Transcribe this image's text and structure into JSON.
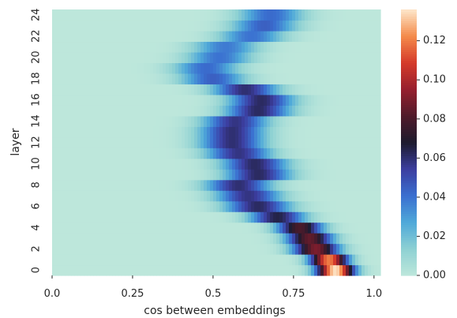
{
  "chart_data": {
    "type": "heatmap",
    "xlabel": "cos between embeddings",
    "ylabel": "layer",
    "x_ticks": [
      "0.0",
      "0.25",
      "0.5",
      "0.75",
      "1.0"
    ],
    "x_tick_values": [
      0,
      0.25,
      0.5,
      0.75,
      1.0
    ],
    "xlim": [
      0,
      1.02
    ],
    "y_ticks": [
      "0",
      "2",
      "4",
      "6",
      "8",
      "10",
      "12",
      "14",
      "16",
      "18",
      "20",
      "22",
      "24"
    ],
    "y_tick_values": [
      0,
      2,
      4,
      6,
      8,
      10,
      12,
      14,
      16,
      18,
      20,
      22,
      24
    ],
    "ylim": [
      0,
      24
    ],
    "colorbar": {
      "ticks": [
        "0.00",
        "0.02",
        "0.04",
        "0.06",
        "0.08",
        "0.10",
        "0.12"
      ],
      "tick_values": [
        0,
        0.02,
        0.04,
        0.06,
        0.08,
        0.1,
        0.12
      ],
      "range": [
        0,
        0.136
      ],
      "colormap": "icefire"
    },
    "colormap_stops": [
      [
        0.0,
        "#bde7db"
      ],
      [
        0.1,
        "#8ed1d3"
      ],
      [
        0.2,
        "#4fa9d9"
      ],
      [
        0.3,
        "#3a6fd0"
      ],
      [
        0.4,
        "#3c3ea0"
      ],
      [
        0.5,
        "#1d1b2e"
      ],
      [
        0.6,
        "#4f1b2b"
      ],
      [
        0.7,
        "#961f2e"
      ],
      [
        0.8,
        "#d53a2a"
      ],
      [
        0.9,
        "#f48a4a"
      ],
      [
        1.0,
        "#fde6c9"
      ]
    ],
    "layers": [
      {
        "layer": 0,
        "peak_x": 0.88,
        "width": 0.04,
        "max": 0.135
      },
      {
        "layer": 1,
        "peak_x": 0.86,
        "width": 0.04,
        "max": 0.12
      },
      {
        "layer": 2,
        "peak_x": 0.82,
        "width": 0.05,
        "max": 0.09
      },
      {
        "layer": 3,
        "peak_x": 0.8,
        "width": 0.05,
        "max": 0.085
      },
      {
        "layer": 4,
        "peak_x": 0.77,
        "width": 0.05,
        "max": 0.08
      },
      {
        "layer": 5,
        "peak_x": 0.7,
        "width": 0.06,
        "max": 0.065
      },
      {
        "layer": 6,
        "peak_x": 0.64,
        "width": 0.07,
        "max": 0.062
      },
      {
        "layer": 7,
        "peak_x": 0.61,
        "width": 0.07,
        "max": 0.058
      },
      {
        "layer": 8,
        "peak_x": 0.58,
        "width": 0.07,
        "max": 0.06
      },
      {
        "layer": 9,
        "peak_x": 0.64,
        "width": 0.07,
        "max": 0.062
      },
      {
        "layer": 10,
        "peak_x": 0.63,
        "width": 0.07,
        "max": 0.062
      },
      {
        "layer": 11,
        "peak_x": 0.58,
        "width": 0.07,
        "max": 0.058
      },
      {
        "layer": 12,
        "peak_x": 0.56,
        "width": 0.07,
        "max": 0.06
      },
      {
        "layer": 13,
        "peak_x": 0.56,
        "width": 0.07,
        "max": 0.06
      },
      {
        "layer": 14,
        "peak_x": 0.57,
        "width": 0.07,
        "max": 0.058
      },
      {
        "layer": 15,
        "peak_x": 0.64,
        "width": 0.07,
        "max": 0.062
      },
      {
        "layer": 16,
        "peak_x": 0.65,
        "width": 0.07,
        "max": 0.062
      },
      {
        "layer": 17,
        "peak_x": 0.6,
        "width": 0.07,
        "max": 0.06
      },
      {
        "layer": 18,
        "peak_x": 0.5,
        "width": 0.07,
        "max": 0.045
      },
      {
        "layer": 19,
        "peak_x": 0.48,
        "width": 0.07,
        "max": 0.042
      },
      {
        "layer": 20,
        "peak_x": 0.52,
        "width": 0.07,
        "max": 0.04
      },
      {
        "layer": 21,
        "peak_x": 0.54,
        "width": 0.07,
        "max": 0.038
      },
      {
        "layer": 22,
        "peak_x": 0.62,
        "width": 0.07,
        "max": 0.04
      },
      {
        "layer": 23,
        "peak_x": 0.66,
        "width": 0.07,
        "max": 0.045
      },
      {
        "layer": 24,
        "peak_x": 0.68,
        "width": 0.07,
        "max": 0.042
      }
    ]
  }
}
